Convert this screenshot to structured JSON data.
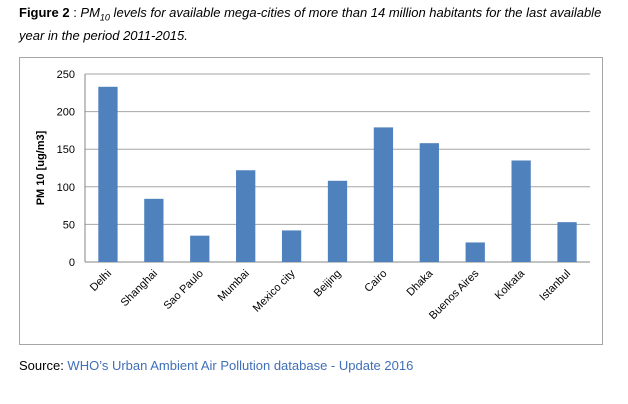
{
  "caption": {
    "figure_label": "Figure 2",
    "separator": " : ",
    "pm_base": "PM",
    "pm_subscript": "10",
    "text": " levels for available mega-cities of more than 14 million habitants for the last available year in the period 2011-2015."
  },
  "source": {
    "label": "Source: ",
    "text": "WHO’s Urban Ambient Air Pollution database - Update 2016"
  },
  "colors": {
    "bar": "#4f81bd",
    "grid": "#a6a6a6",
    "source_text": "#3f6fb8"
  },
  "chart_data": {
    "type": "bar",
    "title": "",
    "xlabel": "",
    "ylabel": "PM 10 [ug/m3]",
    "categories": [
      "Delhi",
      "Shanghai",
      "Sao Paulo",
      "Mumbai",
      "Mexico city",
      "Beijing",
      "Cairo",
      "Dhaka",
      "Buenos Aires",
      "Kolkata",
      "Istanbul"
    ],
    "values": [
      233,
      84,
      35,
      122,
      42,
      108,
      179,
      158,
      26,
      135,
      53
    ],
    "ylim": [
      0,
      250
    ],
    "yticks": [
      0,
      50,
      100,
      150,
      200,
      250
    ],
    "grid": true,
    "legend": false
  }
}
